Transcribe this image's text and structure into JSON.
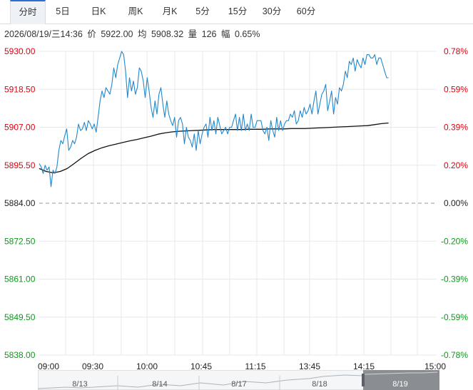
{
  "tabs": [
    {
      "label": "分时",
      "active": true
    },
    {
      "label": "5日",
      "active": false
    },
    {
      "label": "日K",
      "active": false
    },
    {
      "label": "周K",
      "active": false
    },
    {
      "label": "月K",
      "active": false
    },
    {
      "label": "5分",
      "active": false
    },
    {
      "label": "15分",
      "active": false
    },
    {
      "label": "30分",
      "active": false
    },
    {
      "label": "60分",
      "active": false
    }
  ],
  "info": {
    "datetime": "2026/08/19/三14:36",
    "price_label": "价",
    "price": "5922.00",
    "avg_label": "均",
    "avg": "5908.32",
    "vol_label": "量",
    "vol": "126",
    "change_label": "幅",
    "change": "0.65%"
  },
  "colors": {
    "up": "#e0000f",
    "down": "#0a9a1a",
    "neutral": "#222222",
    "price_line": "#2288cc",
    "avg_line": "#111111",
    "grid": "#e8e8e8",
    "active_tab_border": "#2a6fd1"
  },
  "chart_data": {
    "type": "line",
    "base_price": 5884.0,
    "ylim": [
      5838.0,
      5930.0
    ],
    "y_ticks": [
      "5930.00",
      "5918.50",
      "5907.00",
      "5895.50",
      "5884.00",
      "5872.50",
      "5861.00",
      "5849.50",
      "5838.00"
    ],
    "pct_ticks": [
      "0.78%",
      "0.59%",
      "0.39%",
      "0.20%",
      "0.00%",
      "-0.20%",
      "-0.39%",
      "-0.59%",
      "-0.78%"
    ],
    "x_ticks": [
      "09:00",
      "09:30",
      "10:00",
      "10:45",
      "11:15",
      "13:45",
      "14:15",
      "15:00"
    ],
    "series": [
      {
        "key": "price",
        "values": [
          5896.0,
          5895.0,
          5893.0,
          5895.5,
          5894.0,
          5895.0,
          5889.0,
          5894.0,
          5893.0,
          5895.0,
          5900.0,
          5903.0,
          5902.0,
          5904.5,
          5906.5,
          5900.0,
          5901.0,
          5903.0,
          5902.0,
          5904.0,
          5908.0,
          5906.0,
          5906.5,
          5908.5,
          5906.0,
          5909.0,
          5908.0,
          5906.5,
          5908.0,
          5905.5,
          5910.0,
          5915.0,
          5918.0,
          5916.0,
          5919.0,
          5918.0,
          5917.0,
          5920.0,
          5925.0,
          5922.0,
          5926.0,
          5928.0,
          5930.0,
          5929.0,
          5924.0,
          5916.0,
          5922.0,
          5918.0,
          5921.0,
          5917.0,
          5919.0,
          5925.0,
          5924.0,
          5921.0,
          5916.0,
          5922.0,
          5918.0,
          5913.0,
          5910.0,
          5915.0,
          5911.0,
          5917.0,
          5919.0,
          5914.0,
          5910.0,
          5915.0,
          5911.0,
          5909.0,
          5907.5,
          5910.0,
          5904.0,
          5909.0,
          5910.0,
          5908.0,
          5902.0,
          5907.0,
          5904.0,
          5903.0,
          5901.0,
          5905.0,
          5900.0,
          5906.0,
          5902.0,
          5905.0,
          5907.0,
          5908.0,
          5904.0,
          5910.0,
          5906.0,
          5909.0,
          5905.0,
          5910.0,
          5907.5,
          5905.0,
          5906.0,
          5907.0,
          5905.0,
          5907.0,
          5907.0,
          5909.0,
          5911.0,
          5906.0,
          5910.0,
          5906.0,
          5911.0,
          5906.0,
          5908.0,
          5906.0,
          5911.0,
          5907.0,
          5907.0,
          5909.0,
          5909.0,
          5909.0,
          5906.0,
          5905.0,
          5907.0,
          5903.0,
          5909.0,
          5906.0,
          5904.0,
          5910.0,
          5906.0,
          5909.0,
          5906.0,
          5908.0,
          5909.0,
          5909.0,
          5911.0,
          5910.0,
          5912.0,
          5908.0,
          5909.0,
          5912.0,
          5910.0,
          5913.0,
          5911.0,
          5912.0,
          5914.0,
          5911.0,
          5915.0,
          5918.0,
          5911.0,
          5914.0,
          5917.0,
          5918.0,
          5920.0,
          5912.0,
          5915.0,
          5918.0,
          5911.0,
          5916.0,
          5914.0,
          5919.0,
          5918.0,
          5920.0,
          5924.0,
          5922.0,
          5927.0,
          5926.0,
          5928.0,
          5924.0,
          5927.5,
          5926.0,
          5925.0,
          5928.0,
          5926.0,
          5929.0,
          5929.0,
          5928.0,
          5928.0,
          5929.0,
          5926.0,
          5928.0,
          5928.0,
          5926.0,
          5924.0,
          5922.0,
          5922.0
        ],
        "x_end_fraction": 0.879
      },
      {
        "key": "avg",
        "values": [
          5894.5,
          5893.6,
          5893.2,
          5893.6,
          5894.5,
          5896.0,
          5897.6,
          5899.0,
          5900.0,
          5900.8,
          5901.4,
          5901.9,
          5902.4,
          5902.9,
          5903.3,
          5903.8,
          5904.3,
          5904.9,
          5905.3,
          5905.6,
          5905.8,
          5905.9,
          5906.0,
          5906.1,
          5906.2,
          5906.3,
          5906.3,
          5906.3,
          5906.3,
          5906.3,
          5906.4,
          5906.4,
          5906.4,
          5906.5,
          5906.5,
          5906.5,
          5906.6,
          5906.6,
          5906.6,
          5906.7,
          5906.8,
          5906.9,
          5907.0,
          5907.1,
          5907.2,
          5907.3,
          5907.4,
          5907.5,
          5907.8,
          5908.1,
          5908.3
        ],
        "x_end_fraction": 0.879
      }
    ]
  },
  "navigator": {
    "labels": [
      "8/13",
      "8/14",
      "8/17",
      "8/18",
      "8/19"
    ]
  }
}
